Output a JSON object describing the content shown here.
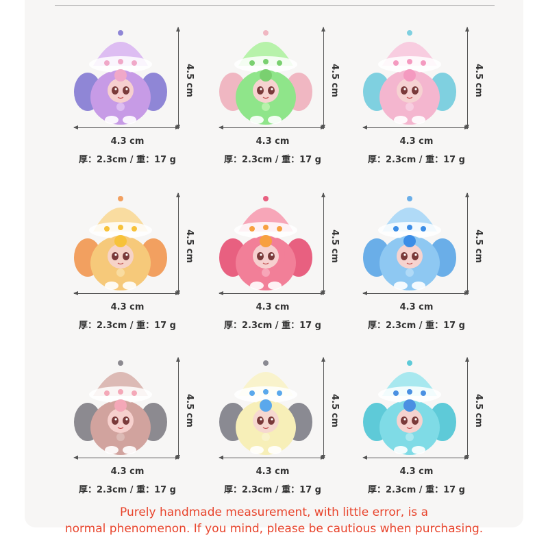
{
  "height_label": "4.5 cm",
  "width_label": "4.3 cm",
  "spec_label": "厚：2.3cm / 重：17 g",
  "figures": [
    {
      "name": "purple",
      "body": "#c79be6",
      "hat": "#ddbdf2",
      "ear": "#8f86d6",
      "face": "#f6cfcf",
      "dot": "#f0a8c8"
    },
    {
      "name": "green",
      "body": "#8fe58a",
      "hat": "#b7f2aa",
      "ear": "#f0b7c2",
      "face": "#f6d3d0",
      "dot": "#7ad070"
    },
    {
      "name": "pink",
      "body": "#f4b6cf",
      "hat": "#f8cde0",
      "ear": "#7fd0e0",
      "face": "#f6d2d2",
      "dot": "#f49ac0"
    },
    {
      "name": "yellow",
      "body": "#f6c97a",
      "hat": "#f9dca0",
      "ear": "#f2a060",
      "face": "#f6d3c8",
      "dot": "#f7c23a"
    },
    {
      "name": "rose",
      "body": "#f27f98",
      "hat": "#f7a6b8",
      "ear": "#e86080",
      "face": "#f6d0cf",
      "dot": "#f7a040"
    },
    {
      "name": "blue",
      "body": "#8ec8f2",
      "hat": "#b0daf7",
      "ear": "#6aaee8",
      "face": "#f6d3cf",
      "dot": "#3b8de6"
    },
    {
      "name": "brown",
      "body": "#d1a39e",
      "hat": "#dcbab5",
      "ear": "#8c8a90",
      "face": "#f6d0cd",
      "dot": "#f4a8b8"
    },
    {
      "name": "cream",
      "body": "#f7efb8",
      "hat": "#f9f3cc",
      "ear": "#8a8a92",
      "face": "#f6d8d0",
      "dot": "#5aa8ec"
    },
    {
      "name": "aqua",
      "body": "#7fdbe6",
      "hat": "#a8e8ef",
      "ear": "#5ecad8",
      "face": "#f6d2cf",
      "dot": "#4a90e2"
    }
  ],
  "notice_line1": "Purely handmade measurement, with little error, is a",
  "notice_line2": "normal phenomenon. If you mind, please be cautious when purchasing.",
  "colors": {
    "notice": "#e8442c",
    "background": "#f7f6f5"
  }
}
